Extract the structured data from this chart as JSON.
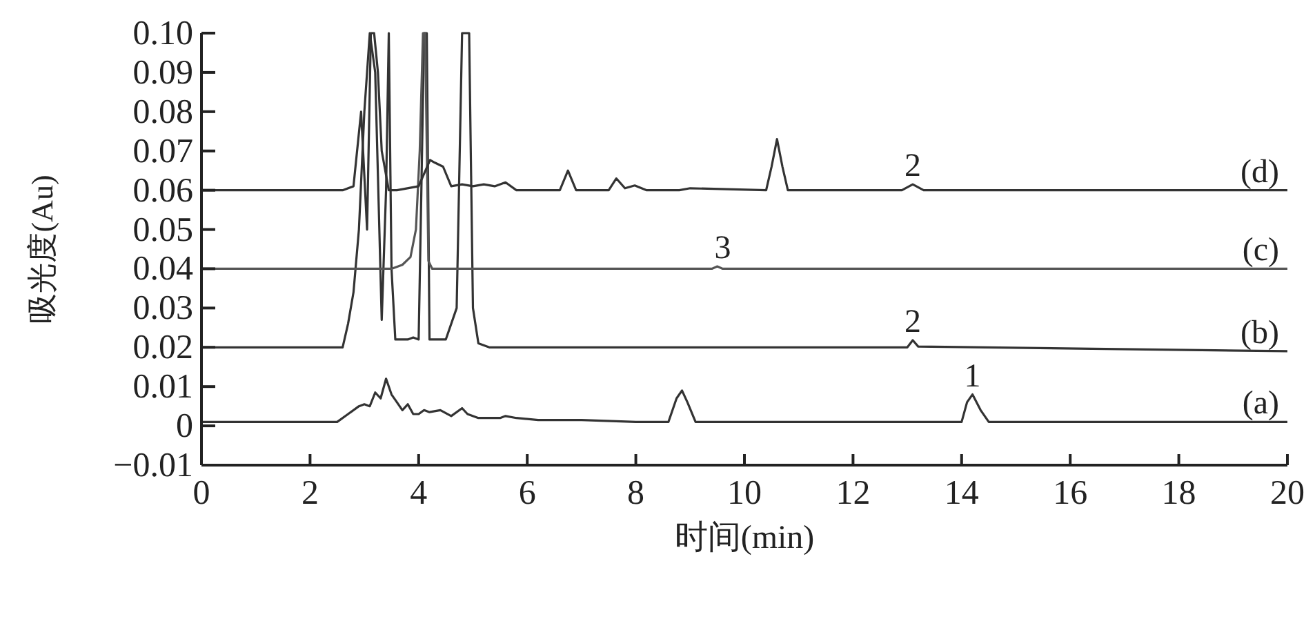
{
  "chart_data": {
    "type": "line",
    "xlabel": "时间(min)",
    "ylabel": "吸光度(Au)",
    "xlim": [
      0,
      20
    ],
    "ylim": [
      -0.01,
      0.1
    ],
    "xticks": [
      0,
      2,
      4,
      6,
      8,
      10,
      12,
      14,
      16,
      18,
      20
    ],
    "yticks": [
      {
        "value": -0.01,
        "label": "−0.01"
      },
      0,
      {
        "value": 0.01,
        "label": "0.01"
      },
      {
        "value": 0.02,
        "label": "0.02"
      },
      {
        "value": 0.03,
        "label": "0.03"
      },
      {
        "value": 0.04,
        "label": "0.04"
      },
      {
        "value": 0.05,
        "label": "0.05"
      },
      {
        "value": 0.06,
        "label": "0.06"
      },
      {
        "value": 0.07,
        "label": "0.07"
      },
      {
        "value": 0.08,
        "label": "0.08"
      },
      {
        "value": 0.09,
        "label": "0.09"
      },
      {
        "value": 0.1,
        "label": "0.10"
      }
    ],
    "line_style": "solid",
    "series": [
      {
        "name": "(a)",
        "color": "#333333",
        "x": [
          0,
          2.5,
          2.7,
          2.9,
          3.0,
          3.1,
          3.2,
          3.3,
          3.4,
          3.5,
          3.6,
          3.7,
          3.8,
          3.9,
          4.0,
          4.1,
          4.2,
          4.4,
          4.6,
          4.8,
          4.9,
          5.1,
          5.5,
          5.6,
          5.8,
          6.2,
          7.0,
          8.0,
          8.6,
          8.75,
          8.85,
          8.95,
          9.1,
          14.0,
          14.1,
          14.2,
          14.35,
          14.5,
          20
        ],
        "values": [
          0.001,
          0.001,
          0.003,
          0.005,
          0.0055,
          0.005,
          0.0085,
          0.007,
          0.012,
          0.008,
          0.006,
          0.004,
          0.0055,
          0.003,
          0.003,
          0.004,
          0.0035,
          0.004,
          0.0025,
          0.0045,
          0.003,
          0.002,
          0.002,
          0.0025,
          0.002,
          0.0015,
          0.0015,
          0.001,
          0.001,
          0.007,
          0.009,
          0.006,
          0.001,
          0.001,
          0.006,
          0.008,
          0.004,
          0.001,
          0.001
        ]
      },
      {
        "name": "(b)",
        "color": "#333333",
        "x": [
          0,
          2.6,
          2.7,
          2.8,
          2.9,
          3.0,
          3.1,
          3.2,
          3.32,
          3.4,
          3.45,
          3.5,
          3.57,
          3.8,
          3.9,
          4.0,
          4.05,
          4.1,
          4.15,
          4.2,
          4.3,
          4.5,
          4.7,
          4.8,
          4.85,
          4.93,
          5.0,
          5.1,
          5.3,
          13.0,
          13.1,
          13.2,
          20
        ],
        "values": [
          0.02,
          0.02,
          0.026,
          0.034,
          0.05,
          0.08,
          0.1,
          0.09,
          0.027,
          0.06,
          0.1,
          0.04,
          0.022,
          0.022,
          0.0225,
          0.022,
          0.06,
          0.1,
          0.1,
          0.022,
          0.022,
          0.022,
          0.03,
          0.1,
          0.1,
          0.1,
          0.03,
          0.021,
          0.02,
          0.02,
          0.0218,
          0.0202,
          0.019
        ]
      },
      {
        "name": "(c)",
        "color": "#555555",
        "x": [
          0,
          3.5,
          3.7,
          3.85,
          3.95,
          4.02,
          4.08,
          4.12,
          4.18,
          4.25,
          9.4,
          9.5,
          9.6,
          20
        ],
        "values": [
          0.04,
          0.04,
          0.041,
          0.043,
          0.05,
          0.07,
          0.1,
          0.1,
          0.042,
          0.04,
          0.04,
          0.0406,
          0.04,
          0.04
        ]
      },
      {
        "name": "(d)",
        "color": "#333333",
        "x": [
          0,
          2.6,
          2.8,
          2.94,
          3.05,
          3.12,
          3.18,
          3.25,
          3.32,
          3.45,
          3.6,
          4.0,
          4.21,
          4.3,
          4.45,
          4.6,
          4.8,
          5.0,
          5.2,
          5.4,
          5.6,
          5.8,
          6.6,
          6.75,
          6.9,
          7.5,
          7.64,
          7.8,
          7.98,
          8.2,
          8.8,
          9.0,
          10.4,
          10.5,
          10.6,
          10.7,
          10.8,
          12.9,
          13.1,
          13.3,
          20
        ],
        "values": [
          0.06,
          0.06,
          0.061,
          0.08,
          0.05,
          0.1,
          0.1,
          0.09,
          0.07,
          0.06,
          0.06,
          0.061,
          0.0677,
          0.067,
          0.066,
          0.061,
          0.0615,
          0.061,
          0.0615,
          0.061,
          0.062,
          0.06,
          0.06,
          0.065,
          0.06,
          0.06,
          0.063,
          0.0605,
          0.0612,
          0.06,
          0.06,
          0.0605,
          0.06,
          0.066,
          0.073,
          0.066,
          0.06,
          0.06,
          0.0615,
          0.06,
          0.06
        ]
      }
    ],
    "annotations": [
      {
        "text": "1",
        "x": 14.2,
        "y": 0.008
      },
      {
        "text": "2",
        "x": 13.1,
        "y": 0.0218
      },
      {
        "text": "3",
        "x": 9.6,
        "y": 0.0406
      },
      {
        "text": "2",
        "x": 13.1,
        "y": 0.0615
      }
    ]
  }
}
